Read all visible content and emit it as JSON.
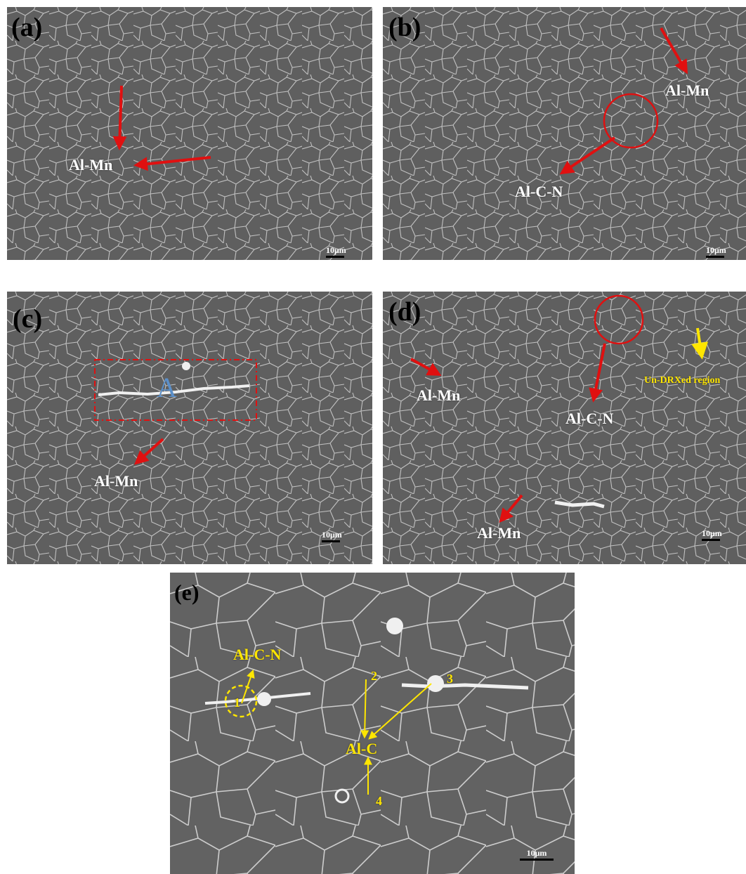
{
  "panels": {
    "a": {
      "label": "(a)",
      "labels": [
        "Al-Mn"
      ],
      "scale": "10μm"
    },
    "b": {
      "label": "(b)",
      "labels": [
        "Al-Mn",
        "Al-C-N"
      ],
      "scale": "10μm"
    },
    "c": {
      "label": "(c)",
      "labels": [
        "A",
        "Al-Mn"
      ],
      "scale": "10μm"
    },
    "d": {
      "label": "(d)",
      "labels": [
        "Al-Mn",
        "Al-C-N",
        "Un-DRXed  region",
        "Al-Mn"
      ],
      "scale": "10μm"
    },
    "e": {
      "label": "(e)",
      "labels": [
        "Al-C-N",
        "Al-C",
        "1",
        "2",
        "3",
        "4"
      ],
      "scale": "10μm"
    }
  },
  "colors": {
    "background": "#5e5e5e",
    "grain": "#e8e8e8",
    "arrow_red": "#e01010",
    "arrow_yellow": "#ffe600",
    "box_label": "#5b8fc9"
  }
}
